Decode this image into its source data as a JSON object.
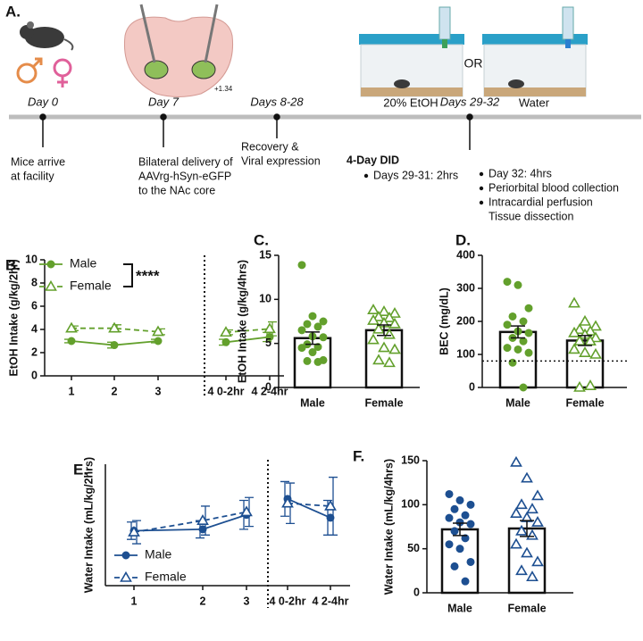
{
  "panel_a": {
    "label": "A.",
    "days": [
      "Day 0",
      "Day 7",
      "Days 8-28",
      "Days 29-32"
    ],
    "bregma": "+1.34",
    "cage_left": "20% EtOH",
    "or": "OR",
    "cage_right": "Water",
    "events": [
      [
        "Mice arrive",
        "at facility"
      ],
      [
        "Bilateral delivery of",
        "AAVrg-hSyn-eGFP",
        "to the NAc core"
      ],
      [
        "Recovery &",
        "Viral expression"
      ]
    ],
    "did_title": "4-Day DID",
    "did_left": [
      "Days 29-31: 2hrs"
    ],
    "did_right": [
      "Day 32: 4hrs",
      "Periorbital blood collection",
      "Intracardial perfusion",
      "Tissue dissection"
    ]
  },
  "chart_data": [
    {
      "type": "line",
      "label": "B.",
      "y_label": "EtOH Intake (g/kg/2hr)",
      "categories": [
        "1",
        "2",
        "3",
        "4 0-2hr",
        "4 2-4hr"
      ],
      "ylim": [
        0,
        10
      ],
      "yticks": [
        0,
        2,
        4,
        6,
        8,
        10
      ],
      "legend": "upper left",
      "annotation": "****",
      "series": [
        {
          "name": "Male",
          "color": "#63a02c",
          "marker": "circle",
          "line_style": "solid",
          "values": [
            3.0,
            2.65,
            3.0,
            2.9,
            3.35
          ],
          "errors": [
            0.15,
            0.25,
            0.15,
            0.25,
            0.4
          ]
        },
        {
          "name": "Female",
          "color": "#63a02c",
          "marker": "triangle",
          "line_style": "dashed",
          "values": [
            4.1,
            4.1,
            3.8,
            3.75,
            4.05
          ],
          "errors": [
            0.2,
            0.3,
            0.25,
            0.2,
            0.6
          ]
        }
      ]
    },
    {
      "type": "bar",
      "label": "C.",
      "y_label": "EtOH Intake (g/kg/4hrs)",
      "categories": [
        "Male",
        "Female"
      ],
      "color": "#63a02c",
      "markers": [
        "circle",
        "triangle"
      ],
      "ylim": [
        0,
        15
      ],
      "yticks": [
        0,
        5,
        10,
        15
      ],
      "values": [
        5.6,
        6.5
      ],
      "errors": [
        0.7,
        0.6
      ],
      "points": [
        [
          13.9,
          8.1,
          7.5,
          7.2,
          6.9,
          6.5,
          5.8,
          5.7,
          4.9,
          4.6,
          4.5,
          4.0,
          3.1,
          3.0,
          2.9
        ],
        [
          8.8,
          8.6,
          8.4,
          8.0,
          7.9,
          7.6,
          7.3,
          7.2,
          6.6,
          6.0,
          5.4,
          4.5,
          4.3,
          3.1,
          2.8
        ]
      ]
    },
    {
      "type": "bar",
      "label": "D.",
      "y_label": "BEC (mg/dL)",
      "categories": [
        "Male",
        "Female"
      ],
      "color": "#63a02c",
      "markers": [
        "circle",
        "triangle"
      ],
      "ylim": [
        0,
        400
      ],
      "yticks": [
        0,
        100,
        200,
        300,
        400
      ],
      "ref_line": 80,
      "values": [
        168,
        142
      ],
      "errors": [
        18,
        15
      ],
      "points": [
        [
          320,
          310,
          240,
          215,
          200,
          190,
          170,
          165,
          150,
          140,
          120,
          115,
          105,
          75,
          0
        ],
        [
          255,
          200,
          185,
          175,
          170,
          165,
          160,
          150,
          140,
          140,
          115,
          105,
          100,
          0,
          5
        ]
      ]
    },
    {
      "type": "line",
      "label": "E.",
      "y_label": "Water Intake (mL/kg/2hrs)",
      "categories": [
        "1",
        "2",
        "3",
        "4 0-2hr",
        "4 2-4hr"
      ],
      "ylim": [
        10,
        52
      ],
      "yticks": [],
      "legend": "lower left",
      "series": [
        {
          "name": "Male",
          "color": "#1d4f91",
          "marker": "circle",
          "line_style": "solid",
          "values": [
            29,
            29.5,
            34.5,
            40,
            33.5
          ],
          "errors": [
            3,
            3,
            5,
            6,
            6
          ]
        },
        {
          "name": "Female",
          "color": "#1d4f91",
          "marker": "triangle",
          "line_style": "dashed",
          "values": [
            28.5,
            32.5,
            35.5,
            38.5,
            37.5
          ],
          "errors": [
            4,
            5,
            5,
            7,
            10
          ]
        }
      ]
    },
    {
      "type": "bar",
      "label": "F.",
      "y_label": "Water Intake (mL/kg/4hrs)",
      "categories": [
        "Male",
        "Female"
      ],
      "color": "#1d4f91",
      "markers": [
        "circle",
        "triangle"
      ],
      "ylim": [
        0,
        150
      ],
      "yticks": [
        0,
        50,
        100,
        150
      ],
      "values": [
        72,
        73
      ],
      "errors": [
        7,
        9
      ],
      "points": [
        [
          112,
          105,
          100,
          95,
          88,
          85,
          80,
          78,
          70,
          62,
          55,
          50,
          35,
          30,
          13
        ],
        [
          148,
          130,
          110,
          100,
          95,
          90,
          85,
          80,
          70,
          65,
          55,
          45,
          35,
          25,
          18
        ]
      ]
    }
  ]
}
